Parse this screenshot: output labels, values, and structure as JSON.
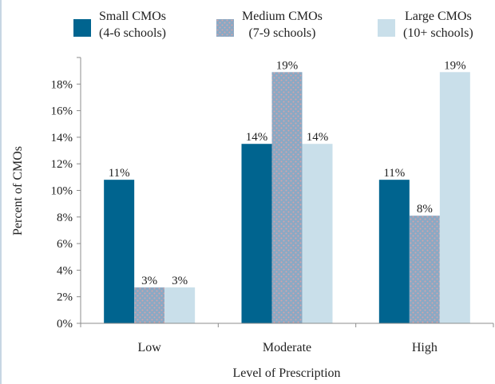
{
  "chart_data": {
    "type": "bar",
    "title": "",
    "xlabel": "Level of Prescription",
    "ylabel": "Percent of CMOs",
    "categories": [
      "Low",
      "Moderate",
      "High"
    ],
    "ylim": [
      0,
      20
    ],
    "yticks": [
      0,
      2,
      4,
      6,
      8,
      10,
      12,
      14,
      16,
      18
    ],
    "ytick_labels": [
      "0%",
      "2%",
      "4%",
      "6%",
      "8%",
      "10%",
      "12%",
      "14%",
      "16%",
      "18%"
    ],
    "series": [
      {
        "name": "Small CMOs (4-6 schools)",
        "name_lines": [
          "Small CMOs",
          "(4-6 schools)"
        ],
        "color": "#00648f",
        "pattern": "solid",
        "values": [
          10.8,
          13.5,
          10.8
        ],
        "labels": [
          "11%",
          "14%",
          "11%"
        ]
      },
      {
        "name": "Medium CMOs (7-9 schools)",
        "name_lines": [
          "Medium CMOs",
          "(7-9 schools)"
        ],
        "color": "#8aa9c4",
        "pattern": "dotted",
        "values": [
          2.7,
          18.9,
          8.1
        ],
        "labels": [
          "3%",
          "19%",
          "8%"
        ]
      },
      {
        "name": "Large CMOs (10+ schools)",
        "name_lines": [
          "Large CMOs",
          "(10+ schools)"
        ],
        "color": "#c9dfea",
        "pattern": "solid",
        "values": [
          2.7,
          13.5,
          18.9
        ],
        "labels": [
          "3%",
          "14%",
          "19%"
        ]
      }
    ],
    "grid": false,
    "legend_position": "top"
  }
}
